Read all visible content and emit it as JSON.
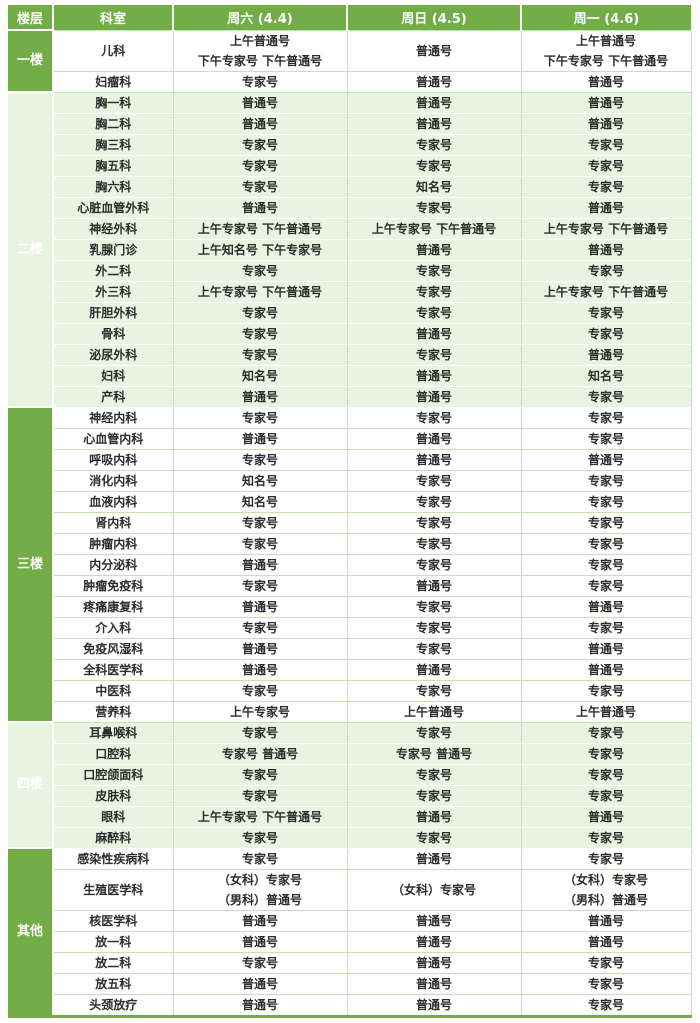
{
  "colors": {
    "accent_green": "#72ad47",
    "row_tint": "#e9f3e1",
    "grid_line": "#c7e2b2",
    "header_text": "#ffffff",
    "body_text": "#2d2d2d"
  },
  "table": {
    "headers": [
      "楼层",
      "科室",
      "周六 (4.4)",
      "周日 (4.5)",
      "周一 (4.6)"
    ],
    "groups": [
      {
        "floor": "一楼",
        "tint": false,
        "rows": [
          {
            "dept": "儿科",
            "sat": [
              "上午普通号",
              "下午专家号 下午普通号"
            ],
            "sun": [
              "普通号"
            ],
            "mon": [
              "上午普通号",
              "下午专家号 下午普通号"
            ]
          },
          {
            "dept": "妇瘤科",
            "sat": [
              "专家号"
            ],
            "sun": [
              "普通号"
            ],
            "mon": [
              "普通号"
            ]
          }
        ]
      },
      {
        "floor": "二楼",
        "tint": true,
        "rows": [
          {
            "dept": "胸一科",
            "sat": [
              "普通号"
            ],
            "sun": [
              "普通号"
            ],
            "mon": [
              "普通号"
            ]
          },
          {
            "dept": "胸二科",
            "sat": [
              "普通号"
            ],
            "sun": [
              "普通号"
            ],
            "mon": [
              "普通号"
            ]
          },
          {
            "dept": "胸三科",
            "sat": [
              "专家号"
            ],
            "sun": [
              "专家号"
            ],
            "mon": [
              "专家号"
            ]
          },
          {
            "dept": "胸五科",
            "sat": [
              "专家号"
            ],
            "sun": [
              "专家号"
            ],
            "mon": [
              "专家号"
            ]
          },
          {
            "dept": "胸六科",
            "sat": [
              "专家号"
            ],
            "sun": [
              "知名号"
            ],
            "mon": [
              "专家号"
            ]
          },
          {
            "dept": "心脏血管外科",
            "sat": [
              "普通号"
            ],
            "sun": [
              "专家号"
            ],
            "mon": [
              "普通号"
            ]
          },
          {
            "dept": "神经外科",
            "sat": [
              "上午专家号 下午普通号"
            ],
            "sun": [
              "上午专家号 下午普通号"
            ],
            "mon": [
              "上午专家号 下午普通号"
            ]
          },
          {
            "dept": "乳腺门诊",
            "sat": [
              "上午知名号 下午专家号"
            ],
            "sun": [
              "普通号"
            ],
            "mon": [
              "普通号"
            ]
          },
          {
            "dept": "外二科",
            "sat": [
              "专家号"
            ],
            "sun": [
              "专家号"
            ],
            "mon": [
              "专家号"
            ]
          },
          {
            "dept": "外三科",
            "sat": [
              "上午专家号 下午普通号"
            ],
            "sun": [
              "专家号"
            ],
            "mon": [
              "上午专家号 下午普通号"
            ]
          },
          {
            "dept": "肝胆外科",
            "sat": [
              "专家号"
            ],
            "sun": [
              "专家号"
            ],
            "mon": [
              "专家号"
            ]
          },
          {
            "dept": "骨科",
            "sat": [
              "专家号"
            ],
            "sun": [
              "普通号"
            ],
            "mon": [
              "专家号"
            ]
          },
          {
            "dept": "泌尿外科",
            "sat": [
              "专家号"
            ],
            "sun": [
              "专家号"
            ],
            "mon": [
              "普通号"
            ]
          },
          {
            "dept": "妇科",
            "sat": [
              "知名号"
            ],
            "sun": [
              "普通号"
            ],
            "mon": [
              "知名号"
            ]
          },
          {
            "dept": "产科",
            "sat": [
              "普通号"
            ],
            "sun": [
              "普通号"
            ],
            "mon": [
              "专家号"
            ]
          }
        ]
      },
      {
        "floor": "三楼",
        "tint": false,
        "rows": [
          {
            "dept": "神经内科",
            "sat": [
              "专家号"
            ],
            "sun": [
              "专家号"
            ],
            "mon": [
              "专家号"
            ]
          },
          {
            "dept": "心血管内科",
            "sat": [
              "普通号"
            ],
            "sun": [
              "普通号"
            ],
            "mon": [
              "专家号"
            ]
          },
          {
            "dept": "呼吸内科",
            "sat": [
              "专家号"
            ],
            "sun": [
              "普通号"
            ],
            "mon": [
              "普通号"
            ]
          },
          {
            "dept": "消化内科",
            "sat": [
              "知名号"
            ],
            "sun": [
              "专家号"
            ],
            "mon": [
              "专家号"
            ]
          },
          {
            "dept": "血液内科",
            "sat": [
              "知名号"
            ],
            "sun": [
              "专家号"
            ],
            "mon": [
              "专家号"
            ]
          },
          {
            "dept": "肾内科",
            "sat": [
              "专家号"
            ],
            "sun": [
              "专家号"
            ],
            "mon": [
              "专家号"
            ]
          },
          {
            "dept": "肿瘤内科",
            "sat": [
              "专家号"
            ],
            "sun": [
              "专家号"
            ],
            "mon": [
              "专家号"
            ]
          },
          {
            "dept": "内分泌科",
            "sat": [
              "普通号"
            ],
            "sun": [
              "专家号"
            ],
            "mon": [
              "专家号"
            ]
          },
          {
            "dept": "肿瘤免疫科",
            "sat": [
              "专家号"
            ],
            "sun": [
              "普通号"
            ],
            "mon": [
              "专家号"
            ]
          },
          {
            "dept": "疼痛康复科",
            "sat": [
              "普通号"
            ],
            "sun": [
              "专家号"
            ],
            "mon": [
              "普通号"
            ]
          },
          {
            "dept": "介入科",
            "sat": [
              "专家号"
            ],
            "sun": [
              "专家号"
            ],
            "mon": [
              "专家号"
            ]
          },
          {
            "dept": "免疫风湿科",
            "sat": [
              "普通号"
            ],
            "sun": [
              "专家号"
            ],
            "mon": [
              "普通号"
            ]
          },
          {
            "dept": "全科医学科",
            "sat": [
              "普通号"
            ],
            "sun": [
              "普通号"
            ],
            "mon": [
              "普通号"
            ]
          },
          {
            "dept": "中医科",
            "sat": [
              "专家号"
            ],
            "sun": [
              "专家号"
            ],
            "mon": [
              "专家号"
            ]
          },
          {
            "dept": "营养科",
            "sat": [
              "上午专家号"
            ],
            "sun": [
              "上午普通号"
            ],
            "mon": [
              "上午普通号"
            ]
          }
        ]
      },
      {
        "floor": "四楼",
        "tint": true,
        "rows": [
          {
            "dept": "耳鼻喉科",
            "sat": [
              "专家号"
            ],
            "sun": [
              "专家号"
            ],
            "mon": [
              "专家号"
            ]
          },
          {
            "dept": "口腔科",
            "sat": [
              "专家号 普通号"
            ],
            "sun": [
              "专家号 普通号"
            ],
            "mon": [
              "专家号"
            ]
          },
          {
            "dept": "口腔颌面科",
            "sat": [
              "专家号"
            ],
            "sun": [
              "专家号"
            ],
            "mon": [
              "专家号"
            ]
          },
          {
            "dept": "皮肤科",
            "sat": [
              "专家号"
            ],
            "sun": [
              "专家号"
            ],
            "mon": [
              "专家号"
            ]
          },
          {
            "dept": "眼科",
            "sat": [
              "上午专家号 下午普通号"
            ],
            "sun": [
              "普通号"
            ],
            "mon": [
              "普通号"
            ]
          },
          {
            "dept": "麻醉科",
            "sat": [
              "专家号"
            ],
            "sun": [
              "专家号"
            ],
            "mon": [
              "专家号"
            ]
          }
        ]
      },
      {
        "floor": "其他",
        "tint": false,
        "rows": [
          {
            "dept": "感染性疾病科",
            "sat": [
              "专家号"
            ],
            "sun": [
              "普通号"
            ],
            "mon": [
              "专家号"
            ]
          },
          {
            "dept": "生殖医学科",
            "sat": [
              "（女科）专家号",
              "（男科）普通号"
            ],
            "sun": [
              "（女科）专家号"
            ],
            "mon": [
              "（女科）专家号",
              "（男科）普通号"
            ]
          },
          {
            "dept": "核医学科",
            "sat": [
              "普通号"
            ],
            "sun": [
              "普通号"
            ],
            "mon": [
              "普通号"
            ]
          },
          {
            "dept": "放一科",
            "sat": [
              "普通号"
            ],
            "sun": [
              "普通号"
            ],
            "mon": [
              "普通号"
            ]
          },
          {
            "dept": "放二科",
            "sat": [
              "专家号"
            ],
            "sun": [
              "普通号"
            ],
            "mon": [
              "专家号"
            ]
          },
          {
            "dept": "放五科",
            "sat": [
              "普通号"
            ],
            "sun": [
              "普通号"
            ],
            "mon": [
              "专家号"
            ]
          },
          {
            "dept": "头颈放疗",
            "sat": [
              "普通号"
            ],
            "sun": [
              "普通号"
            ],
            "mon": [
              "专家号"
            ]
          }
        ]
      }
    ]
  }
}
